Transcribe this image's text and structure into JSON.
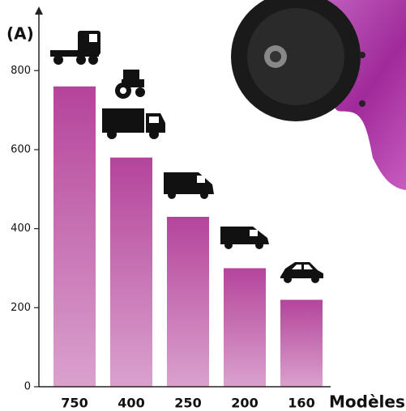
{
  "chart_data": {
    "type": "bar",
    "y_label": "(A)",
    "x_label": "Modèles",
    "categories": [
      "750",
      "400",
      "250",
      "200",
      "160"
    ],
    "values": [
      760,
      580,
      430,
      300,
      220
    ],
    "color": "#b5449b",
    "ylim": [
      0,
      950
    ],
    "yticks": [
      0,
      200,
      400,
      600,
      800
    ]
  }
}
